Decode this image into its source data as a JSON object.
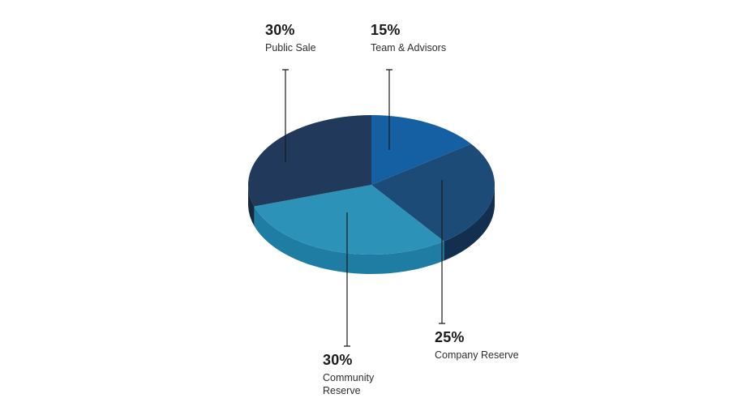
{
  "chart_data": {
    "type": "pie",
    "style": "3d",
    "title": "",
    "legend_position": "none",
    "direction": "clockwise",
    "start_angle_deg": 0,
    "background_color": "#ffffff",
    "categories": [
      "Team & Advisors",
      "Company Reserve",
      "Community Reserve",
      "Public Sale"
    ],
    "values": [
      15,
      25,
      30,
      30
    ],
    "slices": [
      {
        "label": "Team & Advisors",
        "pct": "15%",
        "value": 15,
        "color": "#1560a3",
        "side_color": "#0f4a82"
      },
      {
        "label": "Company Reserve",
        "pct": "25%",
        "value": 25,
        "color": "#1d4b78",
        "side_color": "#122f4f"
      },
      {
        "label": "Community Reserve",
        "pct": "30%",
        "value": 30,
        "color": "#2c92b8",
        "side_color": "#1f7da4"
      },
      {
        "label": "Public Sale",
        "pct": "30%",
        "value": 30,
        "color": "#213a5c",
        "side_color": "#162840"
      }
    ],
    "leader_line_color": "#1a1a1a"
  }
}
